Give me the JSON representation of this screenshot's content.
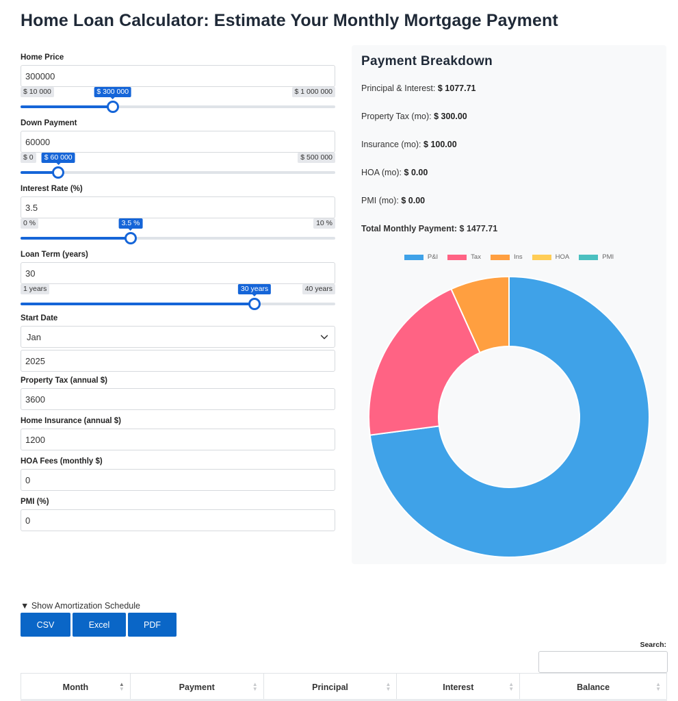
{
  "title": "Home Loan Calculator: Estimate Your Monthly Mortgage Payment",
  "form": {
    "home_price": {
      "label": "Home Price",
      "value": "300000",
      "min": "$ 10 000",
      "max": "$ 1 000 000",
      "current": "$ 300 000",
      "fraction": 0.2929
    },
    "down_payment": {
      "label": "Down Payment",
      "value": "60000",
      "min": "$ 0",
      "max": "$ 500 000",
      "current": "$ 60 000",
      "fraction": 0.12
    },
    "interest_rate": {
      "label": "Interest Rate (%)",
      "value": "3.5",
      "min": "0 %",
      "max": "10 %",
      "current": "3.5 %",
      "fraction": 0.35
    },
    "loan_term": {
      "label": "Loan Term (years)",
      "value": "30",
      "min": "1 years",
      "max": "40 years",
      "current": "30 years",
      "fraction": 0.7436
    },
    "start_date": {
      "label": "Start Date",
      "month": "Jan",
      "year": "2025"
    },
    "property_tax": {
      "label": "Property Tax (annual $)",
      "value": "3600"
    },
    "home_insurance": {
      "label": "Home Insurance (annual $)",
      "value": "1200"
    },
    "hoa": {
      "label": "HOA Fees (monthly $)",
      "value": "0"
    },
    "pmi": {
      "label": "PMI (%)",
      "value": "0"
    }
  },
  "breakdown": {
    "title": "Payment Breakdown",
    "items": [
      {
        "label": "Principal & Interest:",
        "value": "$ 1077.71"
      },
      {
        "label": "Property Tax (mo):",
        "value": "$ 300.00"
      },
      {
        "label": "Insurance (mo):",
        "value": "$ 100.00"
      },
      {
        "label": "HOA (mo):",
        "value": "$ 0.00"
      },
      {
        "label": "PMI (mo):",
        "value": "$ 0.00"
      }
    ],
    "total_label": "Total Monthly Payment:",
    "total_value": "$ 1477.71"
  },
  "chart_data": {
    "type": "pie",
    "categories": [
      "P&I",
      "Tax",
      "Ins",
      "HOA",
      "PMI"
    ],
    "values": [
      1077.71,
      300.0,
      100.0,
      0.0,
      0.0
    ],
    "colors": [
      "#3fa2e8",
      "#ff6384",
      "#ff9f40",
      "#ffcd56",
      "#4bc0c0"
    ],
    "legend": "top",
    "donut": true
  },
  "amortization": {
    "toggle_label": "▼ Show Amortization Schedule",
    "buttons": [
      "CSV",
      "Excel",
      "PDF"
    ],
    "search_label": "Search:",
    "columns": [
      "Month",
      "Payment",
      "Principal",
      "Interest",
      "Balance"
    ]
  }
}
